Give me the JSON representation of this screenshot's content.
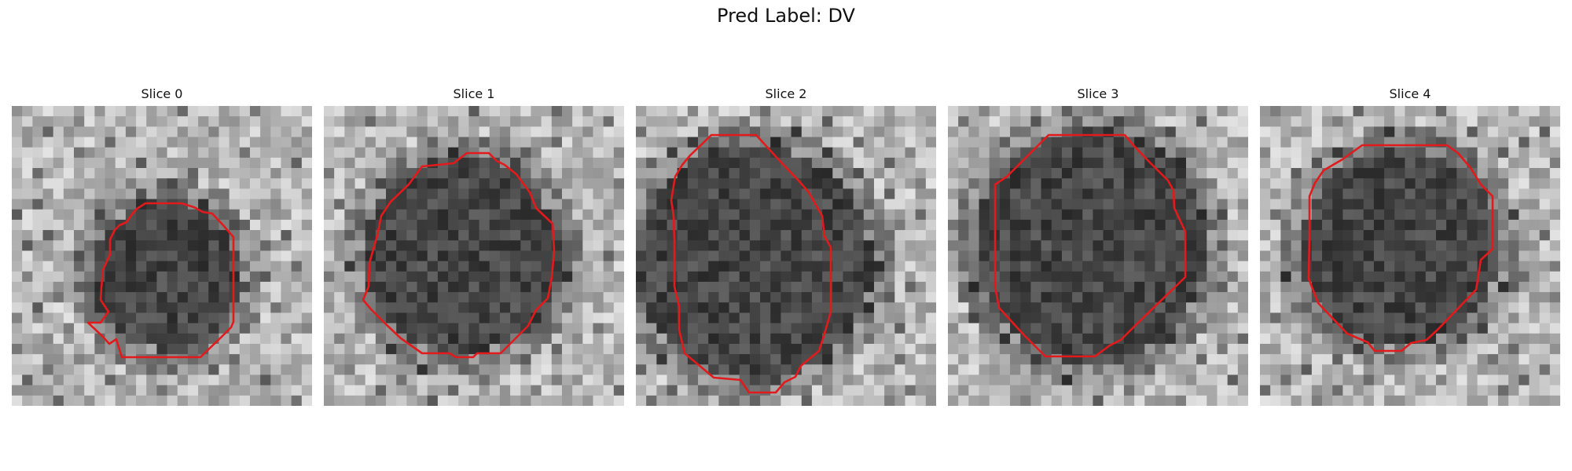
{
  "figure": {
    "title": "Pred Label: DV",
    "contour_color": "#e31a1c"
  },
  "panels": [
    {
      "title": "Slice 0"
    },
    {
      "title": "Slice 1"
    },
    {
      "title": "Slice 2"
    },
    {
      "title": "Slice 3"
    },
    {
      "title": "Slice 4"
    }
  ]
}
